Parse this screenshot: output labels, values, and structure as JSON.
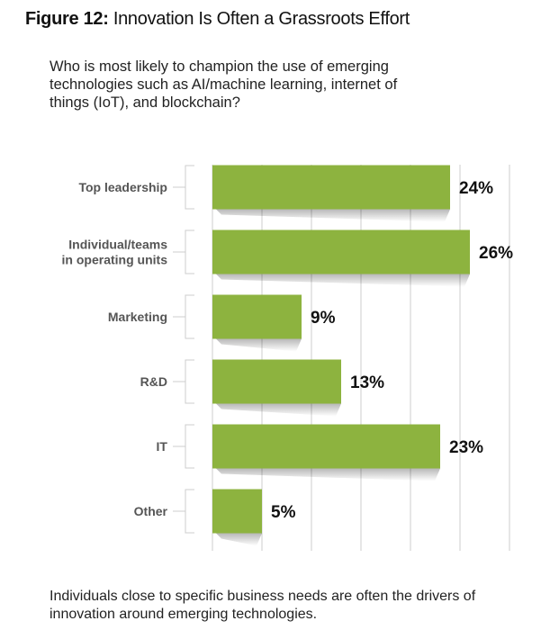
{
  "header": {
    "figure_label": "Figure 12:",
    "title": "Innovation Is Often a Grassroots Effort",
    "subtitle": "Who is most likely to champion the use of emerging technologies such as AI/machine learning, internet of things (IoT), and blockchain?"
  },
  "footer": {
    "note": "Individuals close to specific business needs are often the drivers of innovation around emerging technologies."
  },
  "colors": {
    "bar": "#8db33f",
    "grid": "#cccccc",
    "text": "#555555"
  },
  "chart_data": {
    "type": "bar",
    "orientation": "horizontal",
    "categories": [
      [
        "Top leadership"
      ],
      [
        "Individual/teams",
        "in operating units"
      ],
      [
        "Marketing"
      ],
      [
        "R&D"
      ],
      [
        "IT"
      ],
      [
        "Other"
      ]
    ],
    "values": [
      24,
      26,
      9,
      13,
      23,
      5
    ],
    "value_labels": [
      "24%",
      "26%",
      "9%",
      "13%",
      "23%",
      "5%"
    ],
    "xlim": [
      0,
      30
    ],
    "grid": true
  }
}
